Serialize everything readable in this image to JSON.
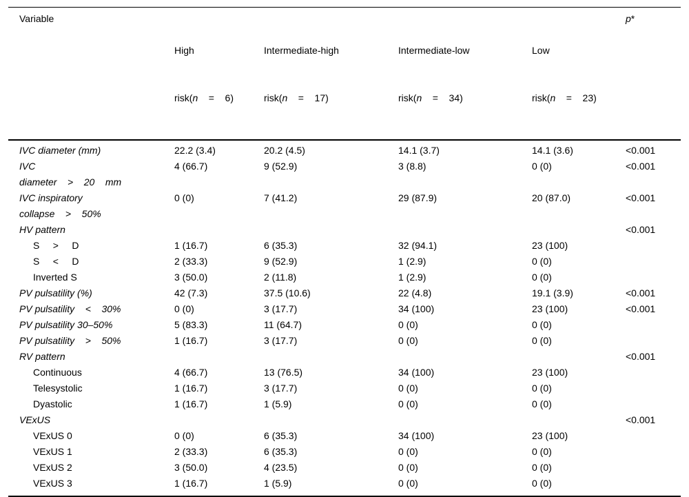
{
  "table": {
    "header": {
      "variable": "Variable",
      "groups": [
        {
          "line1": "High",
          "risk_pre": "risk(",
          "n": "n",
          "risk_post": "    =    6)"
        },
        {
          "line1": "Intermediate-high",
          "risk_pre": "risk(",
          "n": "n",
          "risk_post": "    =    17)"
        },
        {
          "line1": "Intermediate-low",
          "risk_pre": "risk(",
          "n": "n",
          "risk_post": "    =    34)"
        },
        {
          "line1": "Low",
          "risk_pre": "risk(",
          "n": "n",
          "risk_post": "    =    23)"
        }
      ],
      "p_label": "p",
      "p_star": "*"
    },
    "rows": [
      {
        "label": "IVC diameter (mm)",
        "italic": true,
        "indent": false,
        "values": [
          "22.2 (3.4)",
          "20.2 (4.5)",
          "14.1 (3.7)",
          "14.1 (3.6)"
        ],
        "p": "<0.001"
      },
      {
        "label": "IVC\ndiameter    >    20    mm",
        "italic": true,
        "indent": false,
        "values": [
          "4 (66.7)",
          "9 (52.9)",
          "3 (8.8)",
          "0 (0)"
        ],
        "p": "<0.001"
      },
      {
        "label": "IVC inspiratory\ncollapse    >    50%",
        "italic": true,
        "indent": false,
        "values": [
          "0 (0)",
          "7 (41.2)",
          "29 (87.9)",
          "20 (87.0)"
        ],
        "p": "<0.001"
      },
      {
        "label": "HV pattern",
        "italic": true,
        "indent": false,
        "values": [
          "",
          "",
          "",
          ""
        ],
        "p": "<0.001"
      },
      {
        "label": "S     >     D",
        "italic": false,
        "indent": true,
        "values": [
          "1 (16.7)",
          "6 (35.3)",
          "32 (94.1)",
          "23 (100)"
        ],
        "p": ""
      },
      {
        "label": "S     <     D",
        "italic": false,
        "indent": true,
        "values": [
          "2 (33.3)",
          "9 (52.9)",
          "1 (2.9)",
          "0 (0)"
        ],
        "p": ""
      },
      {
        "label": "Inverted S",
        "italic": false,
        "indent": true,
        "values": [
          "3 (50.0)",
          "2 (11.8)",
          "1 (2.9)",
          "0 (0)"
        ],
        "p": ""
      },
      {
        "label": "PV pulsatility (%)",
        "italic": true,
        "indent": false,
        "values": [
          "42 (7.3)",
          "37.5 (10.6)",
          "22 (4.8)",
          "19.1 (3.9)"
        ],
        "p": "<0.001"
      },
      {
        "label": "PV pulsatility    <    30%",
        "italic": true,
        "indent": false,
        "values": [
          "0 (0)",
          "3 (17.7)",
          "34 (100)",
          "23 (100)"
        ],
        "p": "<0.001"
      },
      {
        "label": "PV pulsatility 30–50%",
        "italic": true,
        "indent": false,
        "values": [
          "5 (83.3)",
          "11 (64.7)",
          "0 (0)",
          "0 (0)"
        ],
        "p": ""
      },
      {
        "label": "PV pulsatility    >    50%",
        "italic": true,
        "indent": false,
        "values": [
          "1 (16.7)",
          "3 (17.7)",
          "0 (0)",
          "0 (0)"
        ],
        "p": ""
      },
      {
        "label": "RV pattern",
        "italic": true,
        "indent": false,
        "values": [
          "",
          "",
          "",
          ""
        ],
        "p": "<0.001"
      },
      {
        "label": "Continuous",
        "italic": false,
        "indent": true,
        "values": [
          "4 (66.7)",
          "13 (76.5)",
          "34 (100)",
          "23 (100)"
        ],
        "p": ""
      },
      {
        "label": "Telesystolic",
        "italic": false,
        "indent": true,
        "values": [
          "1 (16.7)",
          "3 (17.7)",
          "0 (0)",
          "0 (0)"
        ],
        "p": ""
      },
      {
        "label": "Dyastolic",
        "italic": false,
        "indent": true,
        "values": [
          "1 (16.7)",
          "1 (5.9)",
          "0 (0)",
          "0 (0)"
        ],
        "p": ""
      },
      {
        "label": "VExUS",
        "italic": true,
        "indent": false,
        "values": [
          "",
          "",
          "",
          ""
        ],
        "p": "<0.001"
      },
      {
        "label": "VExUS 0",
        "italic": false,
        "indent": true,
        "values": [
          "0 (0)",
          "6 (35.3)",
          "34 (100)",
          "23 (100)"
        ],
        "p": ""
      },
      {
        "label": "VExUS 1",
        "italic": false,
        "indent": true,
        "values": [
          "2 (33.3)",
          "6 (35.3)",
          "0 (0)",
          "0 (0)"
        ],
        "p": ""
      },
      {
        "label": "VExUS 2",
        "italic": false,
        "indent": true,
        "values": [
          "3 (50.0)",
          "4 (23.5)",
          "0 (0)",
          "0 (0)"
        ],
        "p": ""
      },
      {
        "label": "VExUS 3",
        "italic": false,
        "indent": true,
        "values": [
          "1 (16.7)",
          "1 (5.9)",
          "0 (0)",
          "0 (0)"
        ],
        "p": ""
      }
    ]
  }
}
